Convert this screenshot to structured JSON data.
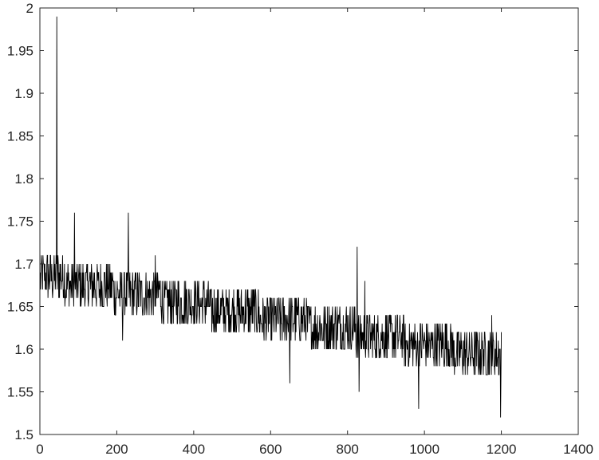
{
  "chart_data": {
    "type": "line",
    "title": "",
    "xlabel": "",
    "ylabel": "",
    "xlim": [
      0,
      1400
    ],
    "ylim": [
      1.5,
      2
    ],
    "x_ticks": [
      0,
      200,
      400,
      600,
      800,
      1000,
      1200,
      1400
    ],
    "y_ticks": [
      1.5,
      1.55,
      1.6,
      1.65,
      1.7,
      1.75,
      1.8,
      1.85,
      1.9,
      1.95,
      2
    ],
    "x_tick_labels": [
      "0",
      "200",
      "400",
      "600",
      "800",
      "1000",
      "1200",
      "1400"
    ],
    "y_tick_labels": [
      "1.5",
      "1.55",
      "1.6",
      "1.65",
      "1.7",
      "1.75",
      "1.8",
      "1.85",
      "1.9",
      "1.95",
      "2"
    ],
    "grid": false,
    "box": true,
    "colors": {
      "line": "#000000",
      "axes": "#262626"
    },
    "series": [
      {
        "approximate_trace": true,
        "x_start": 1,
        "x_end": 1200,
        "trend_start": 1.68,
        "trend_end": 1.585,
        "noise_levels": [
          -0.02,
          -0.01,
          0,
          0.01,
          0.02,
          0.03
        ],
        "spikes": [
          {
            "x": 44,
            "y": 1.99
          },
          {
            "x": 90,
            "y": 1.76
          },
          {
            "x": 230,
            "y": 1.76
          },
          {
            "x": 300,
            "y": 1.71
          },
          {
            "x": 825,
            "y": 1.72
          },
          {
            "x": 845,
            "y": 1.68
          },
          {
            "x": 1175,
            "y": 1.64
          }
        ],
        "dips": [
          {
            "x": 215,
            "y": 1.61
          },
          {
            "x": 650,
            "y": 1.56
          },
          {
            "x": 830,
            "y": 1.55
          },
          {
            "x": 985,
            "y": 1.53
          },
          {
            "x": 1198,
            "y": 1.52
          }
        ]
      }
    ]
  }
}
